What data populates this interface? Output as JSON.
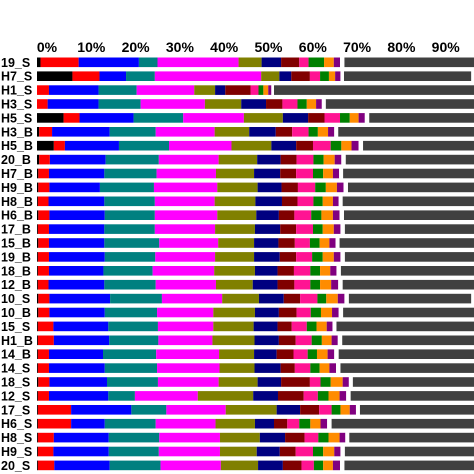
{
  "chart_data": {
    "type": "bar",
    "orientation": "horizontal",
    "stacked": true,
    "normalized": true,
    "title": "",
    "xlabel": "",
    "ylabel": "",
    "xlim": [
      0,
      100
    ],
    "x_ticks": [
      "0%",
      "10%",
      "20%",
      "30%",
      "40%",
      "50%",
      "60%",
      "70%",
      "80%",
      "90%"
    ],
    "x_tick_values": [
      0,
      10,
      20,
      30,
      40,
      50,
      60,
      70,
      80,
      90
    ],
    "categories": [
      "19_S",
      "H7_S",
      "H1_S",
      "H3_S",
      "H5_S",
      "H3_B",
      "H5_B",
      "20_B",
      "H7_B",
      "H9_B",
      "H8_B",
      "H6_B",
      "17_B",
      "15_B",
      "19_B",
      "18_B",
      "12_B",
      "10_S",
      "10_B",
      "15_S",
      "H1_B",
      "14_B",
      "14_S",
      "18_S",
      "12_S",
      "17_S",
      "H6_S",
      "H8_S",
      "H9_S",
      "20_S"
    ],
    "segment_colors": [
      "#000000",
      "#ff0000",
      "#0000ff",
      "#008080",
      "#ff00ff",
      "#808000",
      "#000080",
      "#800000",
      "#ff1493",
      "#008000",
      "#ff8c00",
      "#800080",
      "#ffffff",
      "#404040"
    ],
    "series": [
      {
        "values": [
          0.8,
          8.0,
          0,
          0,
          6.0,
          0.5,
          3.8,
          0.5,
          0.3,
          0.3,
          0.2,
          0.3,
          0.2,
          0.3,
          0.2,
          0.2,
          0.2,
          0.3,
          0.3,
          0.2,
          0.2,
          0.2,
          0.2,
          0.3,
          0.2,
          0.2,
          0.2,
          0.2,
          0.2,
          0.2
        ]
      },
      {
        "values": [
          8.6,
          6.1,
          2.7,
          2.4,
          3.6,
          2.9,
          2.5,
          2.4,
          2.4,
          2.5,
          2.4,
          2.5,
          2.5,
          2.4,
          2.5,
          2.5,
          2.4,
          2.5,
          2.5,
          3.5,
          3.6,
          2.5,
          2.5,
          2.5,
          2.5,
          7.5,
          7.5,
          3.6,
          3.5,
          3.7
        ]
      },
      {
        "values": [
          13.6,
          6.0,
          11.2,
          11.5,
          12.2,
          13.0,
          12.2,
          12.6,
          12.5,
          11.4,
          12.6,
          12.5,
          12.5,
          12.5,
          12.6,
          12.3,
          12.6,
          13.7,
          12.5,
          12.4,
          12.5,
          12.2,
          12.6,
          13.0,
          13.4,
          13.6,
          7.6,
          12.4,
          12.5,
          12.5
        ]
      },
      {
        "values": [
          4.2,
          6.5,
          8.6,
          9.5,
          11.2,
          10.4,
          11.3,
          12.0,
          11.8,
          12.2,
          11.4,
          11.3,
          11.4,
          12.4,
          11.4,
          11.1,
          11.6,
          11.7,
          11.8,
          11.2,
          11.1,
          12.0,
          11.8,
          11.5,
          6.0,
          7.9,
          11.5,
          11.4,
          11.3,
          11.5
        ]
      },
      {
        "values": [
          18.3,
          24.0,
          13.0,
          14.5,
          13.7,
          13.3,
          14.1,
          13.5,
          13.4,
          14.3,
          13.5,
          14.1,
          13.6,
          13.3,
          13.5,
          13.9,
          13.6,
          13.6,
          12.7,
          12.5,
          12.2,
          14.2,
          14.1,
          13.7,
          14.2,
          13.4,
          13.5,
          13.7,
          13.8,
          13.6
        ]
      },
      {
        "values": [
          5.2,
          4.1,
          4.7,
          8.2,
          8.8,
          7.8,
          9.0,
          8.7,
          8.6,
          9.1,
          9.2,
          8.8,
          9.0,
          8.1,
          8.8,
          9.2,
          8.3,
          8.3,
          9.4,
          9.1,
          9.5,
          7.9,
          7.9,
          8.8,
          12.5,
          11.5,
          8.9,
          9.0,
          8.3,
          8.4
        ]
      },
      {
        "values": [
          4.4,
          2.7,
          2.3,
          5.6,
          5.7,
          6.0,
          5.6,
          5.3,
          5.9,
          5.4,
          6.0,
          5.1,
          5.7,
          5.5,
          5.8,
          5.1,
          5.6,
          5.6,
          5.4,
          5.4,
          5.5,
          5.1,
          5.9,
          5.3,
          5.6,
          5.3,
          4.3,
          5.7,
          5.2,
          5.6
        ]
      },
      {
        "values": [
          4.1,
          4.2,
          5.7,
          3.7,
          3.7,
          3.7,
          3.8,
          3.6,
          3.6,
          3.7,
          3.5,
          3.5,
          3.6,
          3.7,
          3.7,
          3.7,
          3.8,
          3.7,
          4.0,
          3.2,
          3.8,
          3.8,
          3.2,
          6.5,
          5.8,
          4.3,
          3.0,
          4.4,
          3.6,
          4.2
        ]
      },
      {
        "values": [
          2.1,
          2.3,
          1.8,
          3.4,
          3.5,
          3.7,
          4.0,
          3.8,
          3.8,
          3.9,
          3.6,
          3.8,
          3.8,
          3.4,
          3.6,
          3.7,
          3.6,
          3.9,
          3.2,
          3.4,
          3.6,
          3.2,
          3.5,
          2.4,
          3.2,
          2.8,
          2.7,
          3.1,
          3.9,
          2.8
        ]
      },
      {
        "values": [
          3.5,
          2.0,
          1.1,
          2.1,
          2.2,
          2.1,
          2.4,
          2.3,
          2.3,
          2.4,
          2.1,
          2.3,
          2.2,
          2.2,
          2.4,
          2.2,
          2.2,
          2.0,
          2.3,
          2.2,
          2.3,
          2.1,
          2.1,
          2.3,
          2.4,
          2.0,
          2.5,
          2.3,
          2.3,
          2.1
        ]
      },
      {
        "values": [
          2.2,
          1.4,
          1.1,
          2.1,
          2.0,
          2.3,
          2.3,
          2.5,
          2.2,
          2.5,
          2.3,
          2.6,
          2.5,
          2.2,
          2.5,
          2.3,
          2.5,
          2.6,
          2.5,
          2.3,
          2.2,
          2.4,
          2.2,
          2.7,
          2.5,
          2.1,
          2.3,
          2.5,
          2.5,
          2.2
        ]
      },
      {
        "values": [
          1.4,
          1.2,
          0.7,
          1.3,
          1.4,
          1.4,
          1.6,
          1.5,
          1.4,
          1.5,
          1.3,
          1.5,
          1.5,
          1.4,
          1.5,
          1.4,
          1.6,
          1.5,
          1.5,
          1.3,
          1.4,
          1.5,
          1.5,
          1.4,
          1.5,
          1.4,
          1.5,
          1.3,
          1.4,
          1.6
        ]
      },
      {
        "values": [
          1.0,
          0.8,
          0.6,
          0.9,
          1.0,
          0.9,
          1.0,
          1.0,
          0.9,
          1.0,
          0.9,
          1.0,
          1.0,
          0.9,
          1.0,
          1.0,
          1.0,
          1.0,
          1.0,
          0.9,
          1.0,
          1.0,
          1.0,
          0.9,
          1.0,
          0.9,
          1.0,
          0.9,
          1.0,
          1.0
        ]
      },
      {
        "values": [
          30.6,
          28.7,
          46.5,
          34.8,
          25.0,
          32.0,
          26.2,
          30.3,
          30.9,
          29.8,
          30.9,
          30.8,
          30.5,
          32.1,
          30.5,
          31.4,
          31.0,
          27.6,
          30.9,
          34.4,
          31.1,
          31.9,
          31.5,
          28.7,
          29.0,
          26.7,
          32.5,
          29.5,
          30.5,
          30.6
        ]
      }
    ]
  }
}
